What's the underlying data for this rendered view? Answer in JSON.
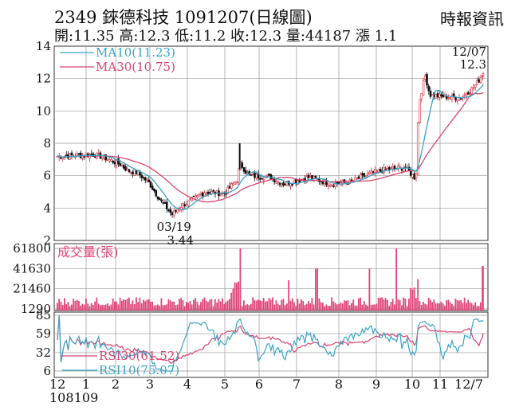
{
  "header": {
    "title": "2349  錸德科技 1091207(日線圖)",
    "source": "時報資訊",
    "stats": "開:11.35 高:12.3 低:11.2 收:12.3 量:44187 漲 1.1"
  },
  "colors": {
    "ma10": "#3aa3c8",
    "ma30": "#d8436f",
    "volume": "#e0457a",
    "rsi30": "#d8436f",
    "rsi10": "#3aa3c8",
    "candle": "#111111",
    "candle_up": "#d02a3a",
    "grid": "#999999"
  },
  "chart_data": [
    {
      "type": "candlestick",
      "panel": "price",
      "ylim": [
        2,
        14
      ],
      "yticks": [
        "2",
        "4",
        "6",
        "8",
        "10",
        "12",
        "14"
      ],
      "legend": [
        {
          "label": "MA10(11.23)",
          "color": "#3aa3c8"
        },
        {
          "label": "MA30(10.75)",
          "color": "#d8436f"
        }
      ],
      "annotations": [
        {
          "text": "03/19",
          "x": "03/19",
          "y": 3.44
        },
        {
          "text": "3.44",
          "x": "03/19",
          "y": 3.44
        },
        {
          "text": "12/07",
          "x": "12/07",
          "y": 12.3
        },
        {
          "text": "12.3",
          "x": "12/07",
          "y": 12.3
        }
      ],
      "close_anchors": [
        {
          "x": "12/06",
          "y": 7.2
        },
        {
          "x": "01/10",
          "y": 7.3
        },
        {
          "x": "01/20",
          "y": 7.1
        },
        {
          "x": "02/05",
          "y": 6.7
        },
        {
          "x": "02/12",
          "y": 6.3
        },
        {
          "x": "02/20",
          "y": 6.2
        },
        {
          "x": "03/01",
          "y": 5.5
        },
        {
          "x": "03/10",
          "y": 4.4
        },
        {
          "x": "03/19",
          "y": 3.6
        },
        {
          "x": "03/25",
          "y": 4.1
        },
        {
          "x": "04/05",
          "y": 4.5
        },
        {
          "x": "04/15",
          "y": 5.0
        },
        {
          "x": "05/01",
          "y": 4.9
        },
        {
          "x": "05/12",
          "y": 5.8
        },
        {
          "x": "05/14",
          "y": 6.8
        },
        {
          "x": "05/22",
          "y": 6.0
        },
        {
          "x": "06/10",
          "y": 5.9
        },
        {
          "x": "06/20",
          "y": 5.5
        },
        {
          "x": "07/10",
          "y": 5.9
        },
        {
          "x": "07/25",
          "y": 5.5
        },
        {
          "x": "08/10",
          "y": 5.6
        },
        {
          "x": "08/25",
          "y": 6.1
        },
        {
          "x": "09/10",
          "y": 6.4
        },
        {
          "x": "09/25",
          "y": 6.5
        },
        {
          "x": "10/05",
          "y": 5.8
        },
        {
          "x": "10/08",
          "y": 10.5
        },
        {
          "x": "10/15",
          "y": 12.2
        },
        {
          "x": "10/20",
          "y": 11.0
        },
        {
          "x": "11/01",
          "y": 10.9
        },
        {
          "x": "11/15",
          "y": 10.8
        },
        {
          "x": "11/25",
          "y": 11.5
        },
        {
          "x": "12/07",
          "y": 12.3
        }
      ]
    },
    {
      "type": "bar",
      "panel": "volume",
      "title": "成交量(張)",
      "ylim": [
        1290,
        61800
      ],
      "yticks": [
        "1290",
        "21460",
        "41630",
        "61800"
      ],
      "spikes": [
        {
          "x": "05/14",
          "value": 61800
        },
        {
          "x": "09/18",
          "value": 61800
        },
        {
          "x": "12/07",
          "value": 44187
        },
        {
          "x": "07/15",
          "value": 41630
        },
        {
          "x": "08/25",
          "value": 41630
        },
        {
          "x": "06/25",
          "value": 30000
        },
        {
          "x": "10/08",
          "value": 31000
        }
      ]
    },
    {
      "type": "line",
      "panel": "rsi",
      "ylim": [
        6,
        85
      ],
      "yticks": [
        "6",
        "32",
        "59",
        "85"
      ],
      "series": [
        {
          "name": "RSI30(61.52)",
          "color": "#d8436f"
        },
        {
          "name": "RSI10(75.07)",
          "color": "#3aa3c8"
        }
      ]
    }
  ],
  "xaxis": {
    "ticks": [
      {
        "label": "12",
        "sub": "108"
      },
      {
        "label": "1",
        "sub": "109"
      },
      {
        "label": "2",
        "sub": ""
      },
      {
        "label": "3",
        "sub": ""
      },
      {
        "label": "4",
        "sub": ""
      },
      {
        "label": "5",
        "sub": ""
      },
      {
        "label": "6",
        "sub": ""
      },
      {
        "label": "7",
        "sub": ""
      },
      {
        "label": "8",
        "sub": ""
      },
      {
        "label": "9",
        "sub": ""
      },
      {
        "label": "10",
        "sub": ""
      },
      {
        "label": "11",
        "sub": ""
      },
      {
        "label": "12/7",
        "sub": ""
      }
    ]
  }
}
